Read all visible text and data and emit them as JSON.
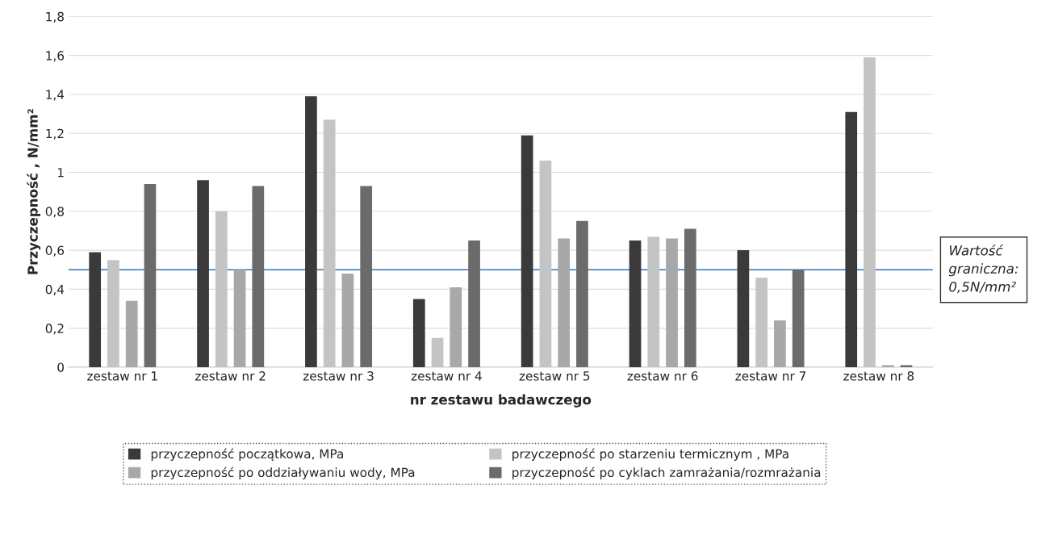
{
  "chart_data": {
    "type": "bar",
    "categories": [
      "zestaw nr 1",
      "zestaw nr 2",
      "zestaw nr 3",
      "zestaw nr 4",
      "zestaw nr 5",
      "zestaw nr 6",
      "zestaw nr 7",
      "zestaw nr 8"
    ],
    "xlabel": "nr zestawu badawczego",
    "ylabel": "Przyczepność , N/mm²",
    "series": [
      {
        "name": "przyczepność początkowa, MPa",
        "color": "#3a3a3a",
        "values": [
          0.59,
          0.96,
          1.39,
          0.35,
          1.19,
          0.65,
          0.6,
          1.31
        ]
      },
      {
        "name": "przyczepność po starzeniu termicznym , MPa",
        "color": "#c4c4c4",
        "values": [
          0.55,
          0.8,
          1.27,
          0.15,
          1.06,
          0.67,
          0.46,
          1.59
        ]
      },
      {
        "name": "przyczepność po oddziaływaniu wody, MPa",
        "color": "#a8a8a8",
        "values": [
          0.34,
          0.5,
          0.48,
          0.41,
          0.66,
          0.66,
          0.24,
          0.01
        ]
      },
      {
        "name": "przyczepność po cyklach zamrażania/rozmrażania",
        "color": "#6b6b6b",
        "values": [
          0.94,
          0.93,
          0.93,
          0.65,
          0.75,
          0.71,
          0.5,
          0.01
        ]
      }
    ],
    "ylim": [
      0,
      1.8
    ],
    "yticks": [
      0,
      {
        "value": 0.2,
        "label": "0,2"
      },
      {
        "value": 0.4,
        "label": "0,4"
      },
      {
        "value": 0.6,
        "label": "0,6"
      },
      {
        "value": 0.8,
        "label": "0,8"
      },
      1,
      {
        "value": 1.2,
        "label": "1,2"
      },
      {
        "value": 1.4,
        "label": "1,4"
      },
      {
        "value": 1.6,
        "label": "1,6"
      },
      {
        "value": 1.8,
        "label": "1,8"
      }
    ],
    "ref_lines": [
      {
        "axis": "y",
        "value": 0.5,
        "label": "Wartość graniczna: 0,5N/mm²",
        "color": "#2e75b6"
      }
    ],
    "grid": "y",
    "legend": "bottom"
  }
}
